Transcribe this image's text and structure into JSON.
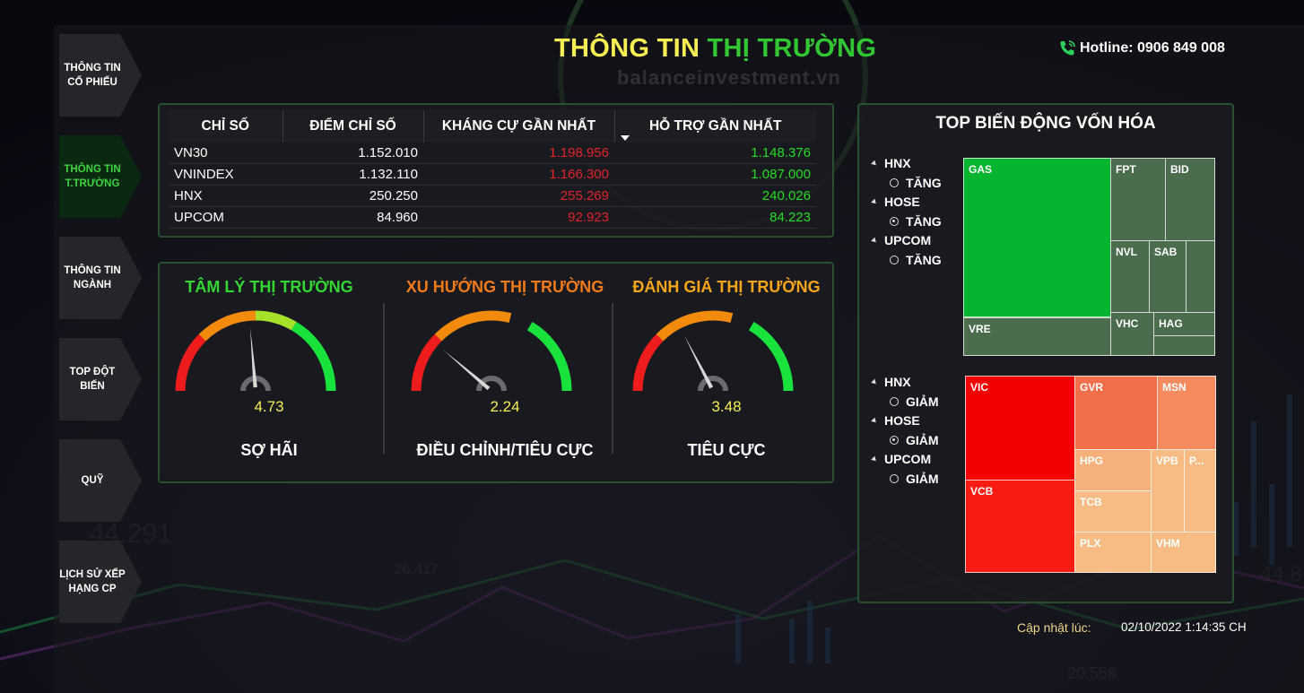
{
  "sidebar": {
    "items": [
      {
        "line1": "THÔNG TIN",
        "line2": "CỔ PHIẾU"
      },
      {
        "line1": "THÔNG TIN",
        "line2": "T.TRƯỜNG"
      },
      {
        "line1": "THÔNG TIN",
        "line2": "NGÀNH"
      },
      {
        "line1": "TOP ĐỘT",
        "line2": "BIẾN"
      },
      {
        "line1": "QUỸ",
        "line2": ""
      },
      {
        "line1": "LỊCH SỬ XẾP",
        "line2": "HẠNG CP"
      }
    ],
    "active_index": 1
  },
  "header": {
    "title_part1": "THÔNG TIN",
    "title_part2": "THỊ TRƯỜNG",
    "hotline": "Hotline: 0906 849 008",
    "watermark": "balanceinvestment.vn"
  },
  "index_table": {
    "headers": [
      "CHỈ SỐ",
      "ĐIỂM CHỈ SỐ",
      "KHÁNG CỰ GẦN NHẤT",
      "HỖ TRỢ GẦN NHẤT"
    ],
    "rows": [
      {
        "name": "VN30",
        "point": "1.152.010",
        "resistance": "1.198.956",
        "support": "1.148.376"
      },
      {
        "name": "VNINDEX",
        "point": "1.132.110",
        "resistance": "1.166.300",
        "support": "1.087.000"
      },
      {
        "name": "HNX",
        "point": "250.250",
        "resistance": "255.269",
        "support": "240.026"
      },
      {
        "name": "UPCOM",
        "point": "84.960",
        "resistance": "92.923",
        "support": "84.223"
      }
    ]
  },
  "gauges": [
    {
      "title": "TÂM LÝ THỊ TRƯỜNG",
      "title_color": "#33d633",
      "value": "4.73",
      "needle": 4.73,
      "label": "SỢ HÃI"
    },
    {
      "title": "XU HƯỚNG THỊ TRƯỜNG",
      "title_color": "#f07a1a",
      "value": "2.24",
      "needle": 2.24,
      "label": "ĐIỀU CHỈNH/TIÊU CỰC"
    },
    {
      "title": "ĐÁNH GIÁ THỊ TRƯỜNG",
      "title_color": "#f5a51a",
      "value": "3.48",
      "needle": 3.48,
      "label": "TIÊU CỰC"
    }
  ],
  "treemap_panel": {
    "title": "TOP BIẾN ĐỘNG VỐN HÓA",
    "up_filters": [
      {
        "exchange": "HNX",
        "option": "TĂNG",
        "selected": false
      },
      {
        "exchange": "HOSE",
        "option": "TĂNG",
        "selected": true
      },
      {
        "exchange": "UPCOM",
        "option": "TĂNG",
        "selected": false
      }
    ],
    "down_filters": [
      {
        "exchange": "HNX",
        "option": "GIẢM",
        "selected": false
      },
      {
        "exchange": "HOSE",
        "option": "GIẢM",
        "selected": true
      },
      {
        "exchange": "UPCOM",
        "option": "GIẢM",
        "selected": false
      }
    ],
    "up_cells": [
      "GAS",
      "VRE",
      "FPT",
      "BID",
      "NVL",
      "SAB",
      "VHC",
      "HAG"
    ],
    "down_cells": [
      "VIC",
      "VCB",
      "GVR",
      "MSN",
      "HPG",
      "TCB",
      "PLX",
      "VPB",
      "P...",
      "VHM"
    ]
  },
  "footer": {
    "update_label": "Cập nhật lúc:",
    "update_time": "02/10/2022 1:14:35 CH"
  },
  "colors": {
    "up_strong": "#06b52f",
    "up_muted": "#4c6c4e",
    "down_strong": "#f40000",
    "down_mid": "#f26f4a",
    "down_light": "#f7bc83"
  }
}
